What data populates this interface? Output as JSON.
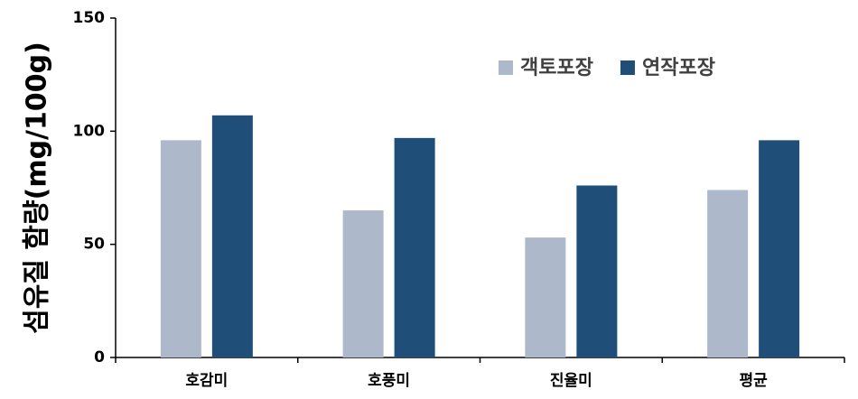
{
  "chart_data": {
    "type": "bar",
    "y_label": "섬유질 함량(mg/100g)",
    "categories": [
      "호감미",
      "호풍미",
      "진율미",
      "평균"
    ],
    "series": [
      {
        "name": "객토포장",
        "color": "#adb9ca",
        "values": [
          96,
          65,
          53,
          74
        ]
      },
      {
        "name": "연작포장",
        "color": "#1f4e79",
        "values": [
          107,
          97,
          76,
          96
        ]
      }
    ],
    "ylim": [
      0,
      150
    ],
    "yticks": [
      0,
      50,
      100,
      150
    ],
    "grid": false,
    "legend": "top-right"
  }
}
